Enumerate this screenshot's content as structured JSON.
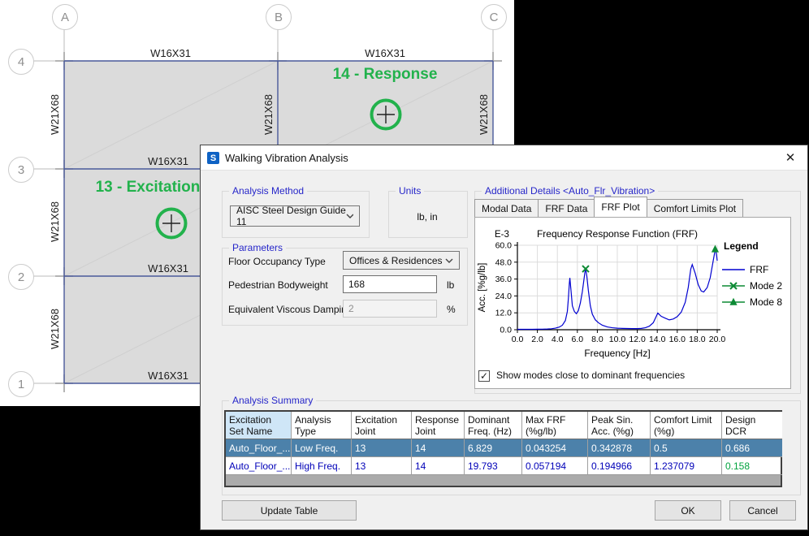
{
  "plan": {
    "col_labels": [
      "A",
      "B",
      "C"
    ],
    "row_labels": [
      "4",
      "3",
      "2",
      "1"
    ],
    "girder_label": "W16X31",
    "beam_label": "W21X68",
    "annotations": {
      "response": "14 - Response",
      "excitation": "13 - Excitation"
    },
    "colors": {
      "slab": "#dbdbdb",
      "beam_line": "#4a5a9b",
      "annotation_green": "#22b24c"
    }
  },
  "dialog": {
    "title": "Walking Vibration Analysis",
    "app_icon": "S",
    "analysis_method": {
      "label": "Analysis Method",
      "value": "AISC Steel Design Guide 11"
    },
    "units": {
      "label": "Units",
      "value": "lb, in"
    },
    "parameters": {
      "label": "Parameters",
      "floor_occupancy": {
        "label": "Floor Occupancy Type",
        "value": "Offices & Residences"
      },
      "bodyweight": {
        "label": "Pedestrian Bodyweight",
        "value": "168",
        "unit": "lb"
      },
      "damping": {
        "label": "Equivalent Viscous Damping",
        "value": "2",
        "unit": "%"
      }
    },
    "additional_details": {
      "label": "Additional Details <Auto_Flr_Vibration>",
      "tabs": [
        "Modal Data",
        "FRF Data",
        "FRF Plot",
        "Comfort Limits Plot"
      ],
      "active_tab": "FRF Plot",
      "show_modes_checkbox": {
        "label": "Show modes close to dominant frequencies",
        "checked": true
      }
    },
    "summary": {
      "label": "Analysis Summary",
      "columns": [
        "Excitation\nSet Name",
        "Analysis\nType",
        "Excitation\nJoint",
        "Response\nJoint",
        "Dominant\nFreq. (Hz)",
        "Max FRF\n(%g/lb)",
        "Peak Sin.\nAcc. (%g)",
        "Comfort Limit\n(%g)",
        "Design DCR"
      ],
      "rows": [
        {
          "cells": [
            "Auto_Floor_...",
            "Low Freq.",
            "13",
            "14",
            "6.829",
            "0.043254",
            "0.342878",
            "0.5",
            "0.686"
          ],
          "selected": true,
          "dcr_color": "#ffffff"
        },
        {
          "cells": [
            "Auto_Floor_...",
            "High Freq.",
            "13",
            "14",
            "19.793",
            "0.057194",
            "0.194966",
            "1.237079",
            "0.158"
          ],
          "selected": false,
          "dcr_color": "#00a33e"
        }
      ]
    },
    "buttons": {
      "update_table": "Update Table",
      "ok": "OK",
      "cancel": "Cancel"
    }
  },
  "icons": {
    "close": "✕",
    "check": "✓"
  },
  "chart_data": {
    "type": "line",
    "title": "Frequency Response Function (FRF)",
    "scale_note": "E-3",
    "xlabel": "Frequency [Hz]",
    "ylabel": "Acc. [%g/lb]",
    "xlim": [
      0,
      20
    ],
    "ylim": [
      0,
      60
    ],
    "xticks": [
      0,
      2,
      4,
      6,
      8,
      10,
      12,
      14,
      16,
      18,
      20
    ],
    "yticks": [
      0,
      12,
      24,
      36,
      48,
      60
    ],
    "grid": true,
    "series": [
      {
        "name": "FRF",
        "color": "#0000d0",
        "x": [
          0,
          0.5,
          1,
          1.5,
          2,
          2.5,
          3,
          3.4,
          3.8,
          4.2,
          4.5,
          4.8,
          5.0,
          5.1,
          5.2,
          5.25,
          5.35,
          5.5,
          5.7,
          5.9,
          6.1,
          6.3,
          6.5,
          6.65,
          6.75,
          6.83,
          6.95,
          7.1,
          7.3,
          7.5,
          7.8,
          8.1,
          8.5,
          9.0,
          9.5,
          10.0,
          10.5,
          11.0,
          11.5,
          12.0,
          12.4,
          12.8,
          13.2,
          13.6,
          13.9,
          14.05,
          14.4,
          14.8,
          15.2,
          15.6,
          16.0,
          16.4,
          16.8,
          17.1,
          17.35,
          17.5,
          17.8,
          18.1,
          18.4,
          18.65,
          19.0,
          19.3,
          19.55,
          19.75,
          19.85,
          19.95,
          20.0
        ],
        "y": [
          0.3,
          0.3,
          0.3,
          0.3,
          0.35,
          0.4,
          0.5,
          0.7,
          1.1,
          1.9,
          3.2,
          6.5,
          13,
          22,
          33,
          36.8,
          29,
          17,
          13,
          11.4,
          13.5,
          19,
          27,
          35,
          40.5,
          43.2,
          38,
          28,
          17,
          11,
          7,
          5,
          3.2,
          2,
          1.4,
          1.1,
          0.95,
          0.85,
          0.8,
          0.8,
          0.95,
          1.4,
          2.5,
          5,
          9.5,
          11.8,
          9.5,
          8.2,
          7.0,
          7.6,
          9.3,
          12.5,
          19.5,
          30,
          43,
          46.3,
          40,
          32,
          27.5,
          26.8,
          30,
          37,
          47,
          55,
          56.8,
          52,
          49
        ]
      }
    ],
    "markers": [
      {
        "name": "Mode 2",
        "shape": "x",
        "x": 6.829,
        "y": 43.254,
        "color": "#0c8a34"
      },
      {
        "name": "Mode 8",
        "shape": "triangle",
        "x": 19.793,
        "y": 57.194,
        "color": "#0c8a34"
      }
    ],
    "legend": {
      "title": "Legend",
      "entries": [
        "FRF",
        "Mode 2",
        "Mode 8"
      ],
      "position": "right"
    }
  }
}
